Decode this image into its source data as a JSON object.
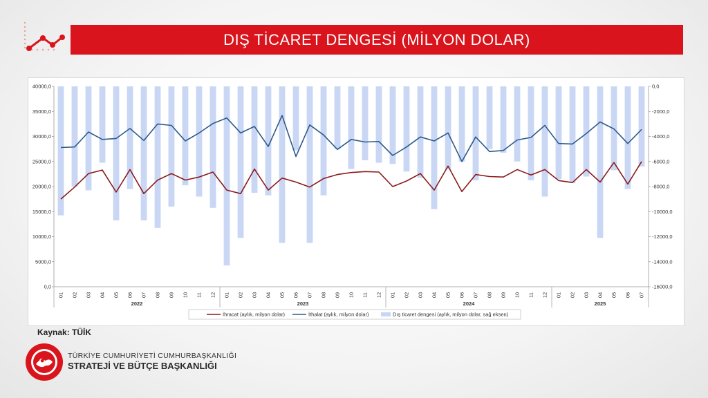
{
  "header": {
    "title": "DIŞ TİCARET DENGESİ (MİLYON DOLAR)"
  },
  "footer": {
    "source": "Kaynak: TÜİK",
    "org_line1": "TÜRKİYE CUMHURİYETİ CUMHURBAŞKANLIĞI",
    "org_line2": "STRATEJİ VE BÜTÇE BAŞKANLIĞI",
    "logo_text": "T.C. CUMHURBAŞKANLIĞI STRATEJİ VE BÜTÇE BAŞKANLIĞI"
  },
  "colors": {
    "accent": "#d9141c",
    "exports": "#8b1a1a",
    "imports": "#2e5b8a",
    "balance": "#c9d7f5"
  },
  "chart_data": {
    "type": "bar",
    "title": "",
    "x_month_labels": [
      "01",
      "02",
      "03",
      "04",
      "05",
      "06",
      "07",
      "08",
      "09",
      "10",
      "11",
      "12",
      "01",
      "02",
      "03",
      "04",
      "05",
      "06",
      "07",
      "08",
      "09",
      "10",
      "11",
      "12",
      "01",
      "02",
      "03",
      "04",
      "05",
      "06",
      "07",
      "08",
      "09",
      "10",
      "11",
      "12",
      "01",
      "02",
      "03",
      "04",
      "05",
      "06",
      "07"
    ],
    "x_year_groups": [
      {
        "label": "2022",
        "count": 12
      },
      {
        "label": "2023",
        "count": 12
      },
      {
        "label": "2024",
        "count": 12
      },
      {
        "label": "2025",
        "count": 7
      }
    ],
    "y_left": {
      "min": 0,
      "max": 40000,
      "ticks": [
        "0,0",
        "5000,0",
        "10000,0",
        "15000,0",
        "20000,0",
        "25000,0",
        "30000,0",
        "35000,0",
        "40000,0"
      ]
    },
    "y_right": {
      "min": -16000,
      "max": 0,
      "ticks": [
        "0,0",
        "-2000,0",
        "-4000,0",
        "-6000,0",
        "-8000,0",
        "-10000,0",
        "-12000,0",
        "-14000,0",
        "-16000,0"
      ]
    },
    "legend": {
      "position": "bottom",
      "exports_label": "İhracat (aylık, milyon dolar)",
      "imports_label": "İthalat (aylık, milyon dolar)",
      "balance_label": "Dış ticaret dengesi (aylık, milyon dolar, sağ eksen)"
    },
    "series": [
      {
        "name": "İhracat (aylık, milyon dolar)",
        "type": "line",
        "axis": "left",
        "values": [
          17500,
          19900,
          22600,
          23300,
          18900,
          23400,
          18600,
          21300,
          22600,
          21300,
          21900,
          22900,
          19300,
          18600,
          23500,
          19300,
          21700,
          20900,
          19900,
          21600,
          22400,
          22800,
          23000,
          22900,
          20000,
          21100,
          22600,
          19300,
          24100,
          19000,
          22400,
          22000,
          21900,
          23400,
          22300,
          23400,
          21200,
          20800,
          23400,
          20900,
          24800,
          20500,
          25000
        ]
      },
      {
        "name": "İthalat (aylık, milyon dolar)",
        "type": "line",
        "axis": "left",
        "values": [
          27800,
          27900,
          30900,
          29400,
          29600,
          31600,
          29200,
          32500,
          32200,
          29100,
          30700,
          32600,
          33700,
          30700,
          32000,
          28000,
          34200,
          26000,
          32300,
          30300,
          27400,
          29400,
          28900,
          29000,
          26200,
          27900,
          29900,
          29100,
          30700,
          25000,
          29900,
          27000,
          27200,
          29300,
          29800,
          32200,
          28600,
          28500,
          30600,
          32900,
          31500,
          28600,
          31400
        ]
      },
      {
        "name": "Dış ticaret dengesi (aylık, milyon dolar, sağ eksen)",
        "type": "bar",
        "axis": "right",
        "values": [
          -10300,
          -8000,
          -8300,
          -6100,
          -10700,
          -8200,
          -10700,
          -11300,
          -9600,
          -7900,
          -8800,
          -9700,
          -14300,
          -12100,
          -8500,
          -8700,
          -12500,
          -5100,
          -12500,
          -8700,
          -5000,
          -6600,
          -5900,
          -6100,
          -6200,
          -6800,
          -7300,
          -9800,
          -6600,
          -6000,
          -7500,
          -5000,
          -5300,
          -6000,
          -7500,
          -8800,
          -7400,
          -7700,
          -7200,
          -12100,
          -6700,
          -8200,
          -6400
        ]
      }
    ]
  }
}
